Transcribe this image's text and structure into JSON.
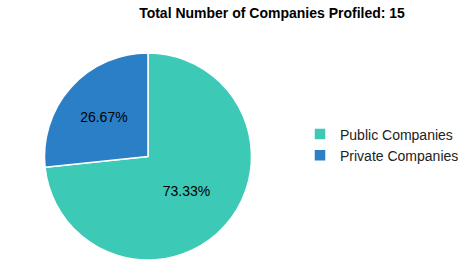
{
  "chart_data": {
    "type": "pie",
    "title": "Total Number of Companies Profiled: 15",
    "categories": [
      "Public Companies",
      "Private Companies"
    ],
    "values": [
      73.33,
      26.67
    ],
    "value_labels": [
      "73.33%",
      "26.67%"
    ],
    "colors": [
      "#3cc9b6",
      "#2a7fc6"
    ],
    "data_labels": true,
    "legend": "right"
  }
}
